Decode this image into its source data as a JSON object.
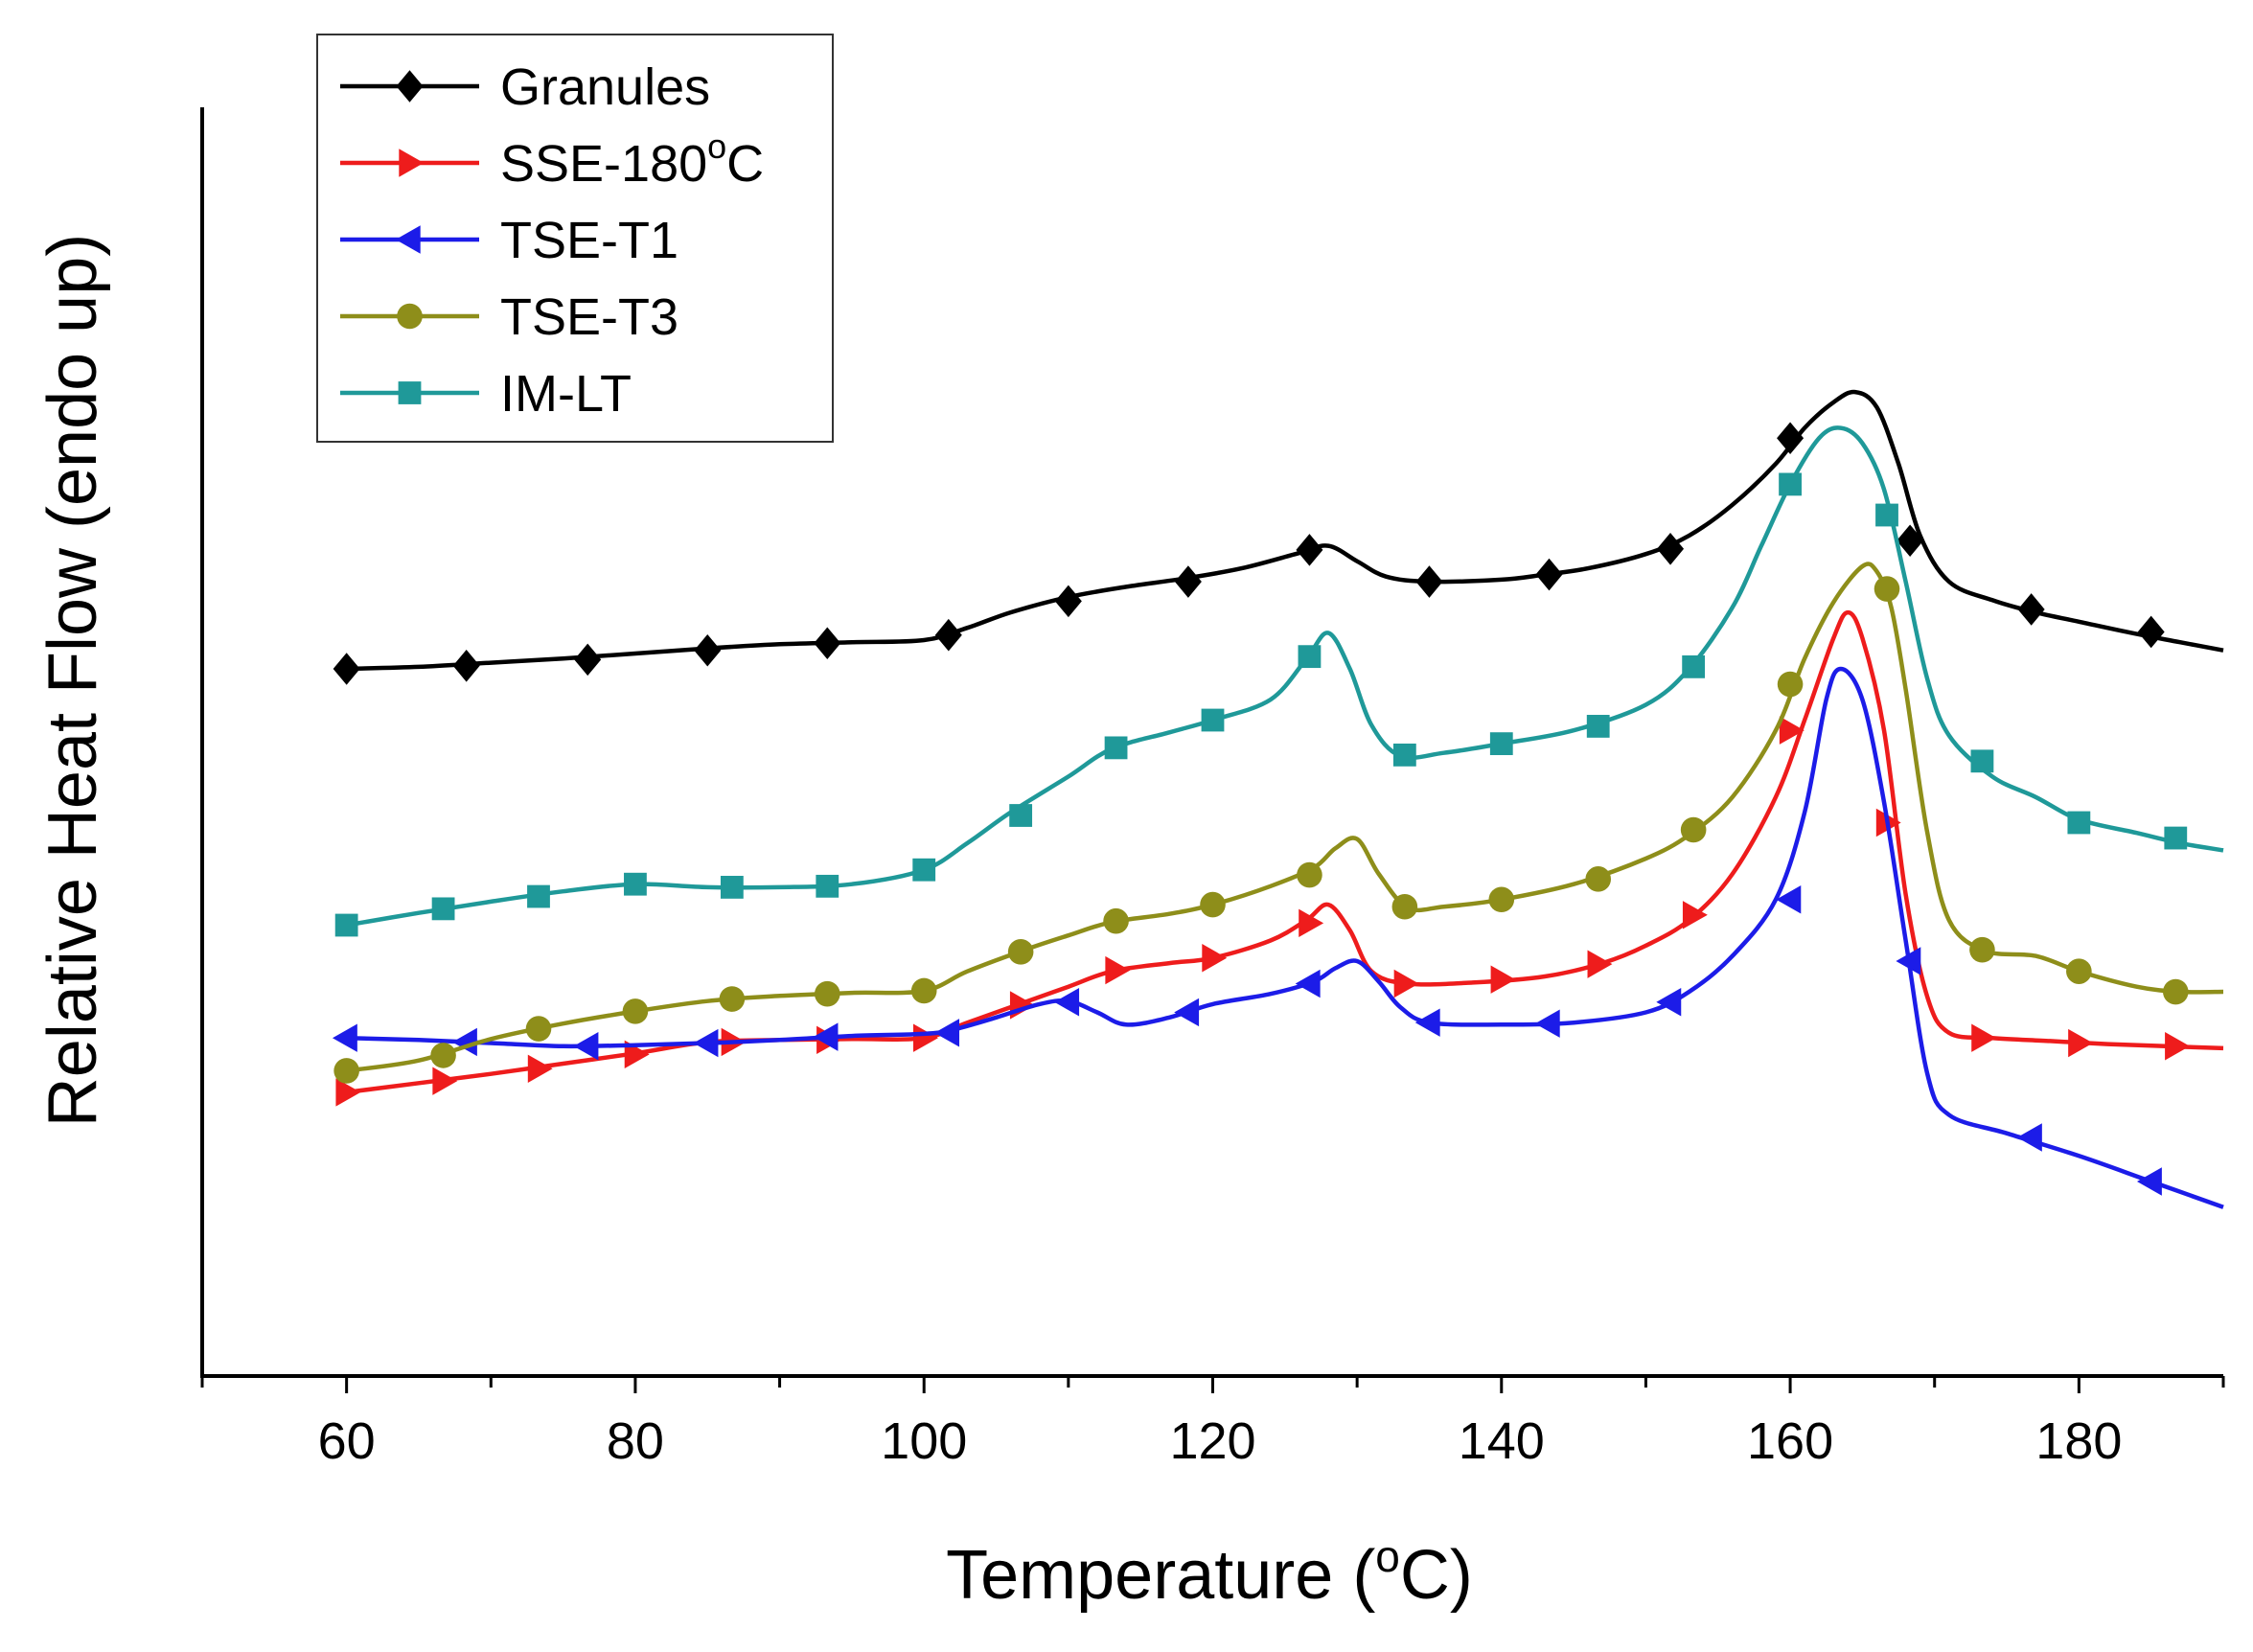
{
  "chart_data": {
    "type": "line",
    "title": "",
    "xlabel": "Temperature",
    "xlabel_unit_sup": "o",
    "xlabel_unit": "C",
    "ylabel": "Relative Heat Flow (endo up)",
    "xlim": [
      50,
      190
    ],
    "ylim": [
      0,
      100
    ],
    "xticks": [
      60,
      80,
      100,
      120,
      140,
      160,
      180
    ],
    "y_ticks_shown": false,
    "legend_position": "top-left",
    "series": [
      {
        "name": "Granules",
        "legend_label": "Granules",
        "legend_sup": "",
        "legend_suffix": "",
        "color": "#000000",
        "marker": "diamond",
        "x": [
          60,
          65,
          70,
          75,
          80,
          85,
          90,
          95,
          100,
          103,
          106,
          110,
          114,
          118,
          122,
          126,
          128,
          130,
          132,
          135,
          140,
          143,
          146,
          150,
          153,
          156,
          159,
          161,
          163,
          164.5,
          166,
          167.5,
          169,
          171,
          174,
          177,
          180,
          184,
          187,
          190
        ],
        "y": [
          60.0,
          60.2,
          60.6,
          61.0,
          61.5,
          62.0,
          62.4,
          62.6,
          62.8,
          64.0,
          65.5,
          67.0,
          68.0,
          68.8,
          69.8,
          71.3,
          72.0,
          70.5,
          69.0,
          68.5,
          68.7,
          69.2,
          69.8,
          71.2,
          73.0,
          76.0,
          80.0,
          83.5,
          86.0,
          87.0,
          85.5,
          80.0,
          73.0,
          68.5,
          66.7,
          65.5,
          64.6,
          63.4,
          62.6,
          61.8
        ],
        "marker_x": [
          60,
          68.3,
          76.7,
          85,
          93.3,
          101.7,
          110,
          118.3,
          126.7,
          135,
          143.3,
          151.7,
          160,
          168.3,
          176.7,
          185
        ],
        "marker_y": [
          60.0,
          60.3,
          60.9,
          61.8,
          62.5,
          63.3,
          66.6,
          68.5,
          71.6,
          68.5,
          69.2,
          71.7,
          82.5,
          72.5,
          65.8,
          63.6
        ]
      },
      {
        "name": "SSE-180°C",
        "legend_label": "SSE-180",
        "legend_sup": "o",
        "legend_suffix": "C",
        "color": "#ee1c1c",
        "marker": "triangle-right",
        "x": [
          60,
          65,
          70,
          75,
          80,
          85,
          90,
          95,
          100,
          103,
          107,
          110,
          113,
          117,
          120,
          124,
          126.5,
          128,
          129.5,
          131,
          133.5,
          138,
          143,
          147,
          150,
          153,
          156,
          159,
          161,
          163,
          164,
          165,
          166.5,
          168,
          169.5,
          171,
          174,
          178,
          182,
          186,
          190
        ],
        "y": [
          18.7,
          19.6,
          20.5,
          21.5,
          22.5,
          23.6,
          23.8,
          23.9,
          24.0,
          25.5,
          27.5,
          29.0,
          30.5,
          31.3,
          31.8,
          33.5,
          35.5,
          37.0,
          34.5,
          30.5,
          29.3,
          29.4,
          30.0,
          31.3,
          33.0,
          35.5,
          40.0,
          47.5,
          55.0,
          63.0,
          65.5,
          63.0,
          54.0,
          38.0,
          28.0,
          24.5,
          24.0,
          23.7,
          23.4,
          23.2,
          23.0
        ],
        "marker_x": [
          60,
          66.7,
          73.3,
          80,
          86.7,
          93.3,
          100,
          106.7,
          113.3,
          120,
          126.7,
          133.3,
          140,
          146.7,
          153.3,
          160,
          166.7,
          173.3,
          180,
          186.7
        ],
        "marker_y": [
          18.7,
          19.8,
          21.0,
          22.4,
          23.6,
          23.8,
          24.0,
          27.2,
          30.6,
          31.8,
          35.2,
          29.3,
          29.7,
          31.2,
          36.0,
          54.0,
          45.0,
          24.0,
          23.5,
          23.2
        ]
      },
      {
        "name": "TSE-T1",
        "legend_label": "TSE-T1",
        "legend_sup": "",
        "legend_suffix": "",
        "color": "#1c1ce8",
        "marker": "triangle-left",
        "x": [
          60,
          65,
          70,
          75,
          80,
          85,
          90,
          95,
          100,
          102,
          105,
          108,
          110,
          112,
          114,
          117,
          120,
          124,
          127,
          128.5,
          130,
          131.5,
          133,
          135,
          140,
          145,
          150,
          153,
          156,
          159,
          161,
          162.5,
          163.5,
          165,
          166.5,
          168,
          169.5,
          171,
          175,
          180,
          185,
          190
        ],
        "y": [
          24.0,
          23.8,
          23.5,
          23.2,
          23.3,
          23.5,
          23.8,
          24.2,
          24.4,
          24.8,
          26.0,
          27.3,
          27.6,
          26.5,
          25.3,
          26.0,
          27.3,
          28.3,
          29.5,
          30.8,
          31.5,
          29.5,
          27.0,
          25.5,
          25.3,
          25.5,
          26.5,
          28.5,
          32.0,
          37.5,
          46.0,
          57.0,
          60.0,
          57.0,
          47.0,
          33.5,
          20.5,
          16.5,
          14.7,
          12.5,
          10.0,
          7.5
        ],
        "marker_x": [
          60,
          68.3,
          76.7,
          85,
          93.3,
          101.7,
          110,
          118.3,
          126.7,
          135,
          143.3,
          151.7,
          160,
          168.3,
          176.7,
          185
        ],
        "marker_y": [
          24.0,
          23.6,
          23.2,
          23.5,
          24.1,
          24.5,
          27.5,
          26.5,
          29.3,
          25.5,
          25.4,
          27.5,
          37.5,
          31.5,
          14.3,
          10.0
        ]
      },
      {
        "name": "TSE-T3",
        "legend_label": "TSE-T3",
        "legend_sup": "",
        "legend_suffix": "",
        "color": "#8e8e1a",
        "marker": "circle",
        "x": [
          60,
          65,
          70,
          75,
          80,
          85,
          90,
          95,
          100,
          103,
          107,
          110,
          113,
          117,
          120,
          124,
          127,
          128.5,
          130,
          131.5,
          133.5,
          136,
          140,
          145,
          150,
          153,
          156,
          159,
          161,
          163,
          165,
          166,
          167,
          168,
          169.5,
          171,
          173.5,
          177,
          180,
          184,
          187,
          190
        ],
        "y": [
          20.8,
          21.8,
          23.9,
          25.4,
          26.6,
          27.6,
          28.1,
          28.4,
          28.6,
          30.5,
          32.6,
          34.0,
          35.3,
          36.1,
          37.0,
          38.8,
          40.6,
          42.5,
          43.4,
          40.0,
          36.7,
          36.8,
          37.5,
          39.0,
          41.5,
          43.8,
          47.5,
          54.0,
          61.0,
          66.5,
          70.0,
          69.5,
          66.0,
          58.0,
          44.0,
          35.5,
          32.5,
          32.0,
          30.5,
          29.0,
          28.5,
          28.5
        ],
        "marker_x": [
          60,
          66.7,
          73.3,
          80,
          86.7,
          93.3,
          100,
          106.7,
          113.3,
          120,
          126.7,
          133.3,
          140,
          146.7,
          153.3,
          160,
          166.7,
          173.3,
          180,
          186.7
        ],
        "marker_y": [
          20.8,
          22.3,
          24.9,
          26.6,
          27.8,
          28.3,
          28.6,
          32.4,
          35.4,
          37.0,
          39.9,
          36.8,
          37.5,
          39.5,
          44.3,
          58.5,
          67.8,
          32.6,
          30.5,
          28.5
        ]
      },
      {
        "name": "IM-LT",
        "legend_label": "IM-LT",
        "legend_sup": "",
        "legend_suffix": "",
        "color": "#1f9999",
        "marker": "square",
        "x": [
          60,
          65,
          70,
          75,
          80,
          85,
          90,
          95,
          100,
          103,
          106,
          110,
          113,
          117,
          120,
          124,
          126.5,
          128,
          129.5,
          131,
          133,
          136,
          140,
          145,
          150,
          153,
          156,
          158,
          160,
          162,
          163.5,
          165,
          166.5,
          168,
          169.5,
          171,
          174,
          177,
          180,
          184,
          187,
          190
        ],
        "y": [
          35.0,
          36.2,
          37.3,
          38.3,
          39.0,
          38.7,
          38.7,
          39.0,
          40.4,
          43.0,
          46.0,
          49.5,
          52.2,
          53.8,
          55.0,
          57.0,
          61.0,
          63.5,
          60.0,
          54.5,
          51.5,
          51.8,
          52.7,
          54.0,
          56.5,
          60.0,
          66.0,
          72.0,
          78.0,
          82.5,
          83.5,
          82.0,
          77.5,
          68.5,
          59.0,
          53.5,
          49.5,
          47.5,
          45.3,
          44.0,
          43.0,
          42.3
        ],
        "marker_x": [
          60,
          66.7,
          73.3,
          80,
          86.7,
          93.3,
          100,
          106.7,
          113.3,
          120,
          126.7,
          133.3,
          140,
          146.7,
          153.3,
          160,
          166.7,
          173.3,
          180,
          186.7
        ],
        "marker_y": [
          35.0,
          36.6,
          37.8,
          39.0,
          38.7,
          38.8,
          40.4,
          45.7,
          52.3,
          55.0,
          61.2,
          51.6,
          52.7,
          54.4,
          60.2,
          78.0,
          75.0,
          51.0,
          45.0,
          43.5
        ]
      }
    ]
  }
}
